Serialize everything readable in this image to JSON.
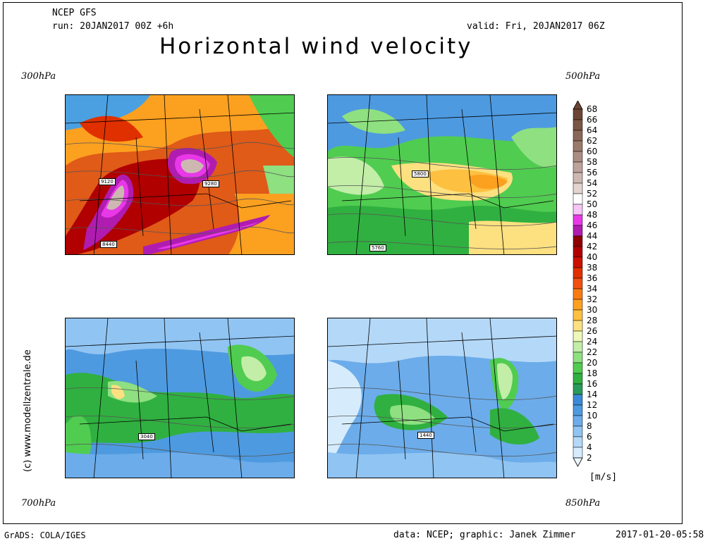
{
  "header": {
    "model": "NCEP GFS",
    "run": "run: 20JAN2017 00Z +6h",
    "valid": "valid: Fri, 20JAN2017 06Z",
    "title": "Horizontal wind velocity"
  },
  "panels": [
    {
      "level": "300hPa",
      "contour_labels": [
        "9120",
        "9280",
        "8440"
      ]
    },
    {
      "level": "500hPa",
      "contour_labels": [
        "5800",
        "5760"
      ]
    },
    {
      "level": "700hPa",
      "contour_labels": [
        "3040"
      ]
    },
    {
      "level": "850hPa",
      "contour_labels": [
        "1440"
      ]
    }
  ],
  "legend": {
    "unit": "[m/s]",
    "ticks": [
      "68",
      "66",
      "64",
      "62",
      "60",
      "58",
      "56",
      "54",
      "52",
      "50",
      "48",
      "46",
      "44",
      "42",
      "40",
      "38",
      "36",
      "34",
      "32",
      "30",
      "28",
      "26",
      "24",
      "22",
      "20",
      "18",
      "16",
      "14",
      "12",
      "10",
      "8",
      "6",
      "4",
      "2"
    ],
    "colors": [
      "#6b4433",
      "#7a5645",
      "#8a6757",
      "#9a7a6b",
      "#ab8e82",
      "#bca29a",
      "#cdb8b1",
      "#e3d4cf",
      "#ffffff",
      "#f6c6f6",
      "#e838e8",
      "#b01cb0",
      "#900000",
      "#b00000",
      "#cc1000",
      "#e03000",
      "#f05010",
      "#fa7a10",
      "#fca020",
      "#fdc040",
      "#fde080",
      "#eef8b8",
      "#c2eea8",
      "#8ee080",
      "#50cc50",
      "#30b040",
      "#2a9a5a",
      "#3a8ad8",
      "#4e9ae0",
      "#6cacea",
      "#90c4f2",
      "#b4d8f8",
      "#d6ecfc",
      "#eef8ff"
    ]
  },
  "footer": {
    "left": "GrADS: COLA/IGES",
    "credit": "data: NCEP; graphic: Janek Zimmer",
    "timestamp": "2017-01-20-05:58"
  },
  "copyright": "(c) www.modellzentrale.de"
}
